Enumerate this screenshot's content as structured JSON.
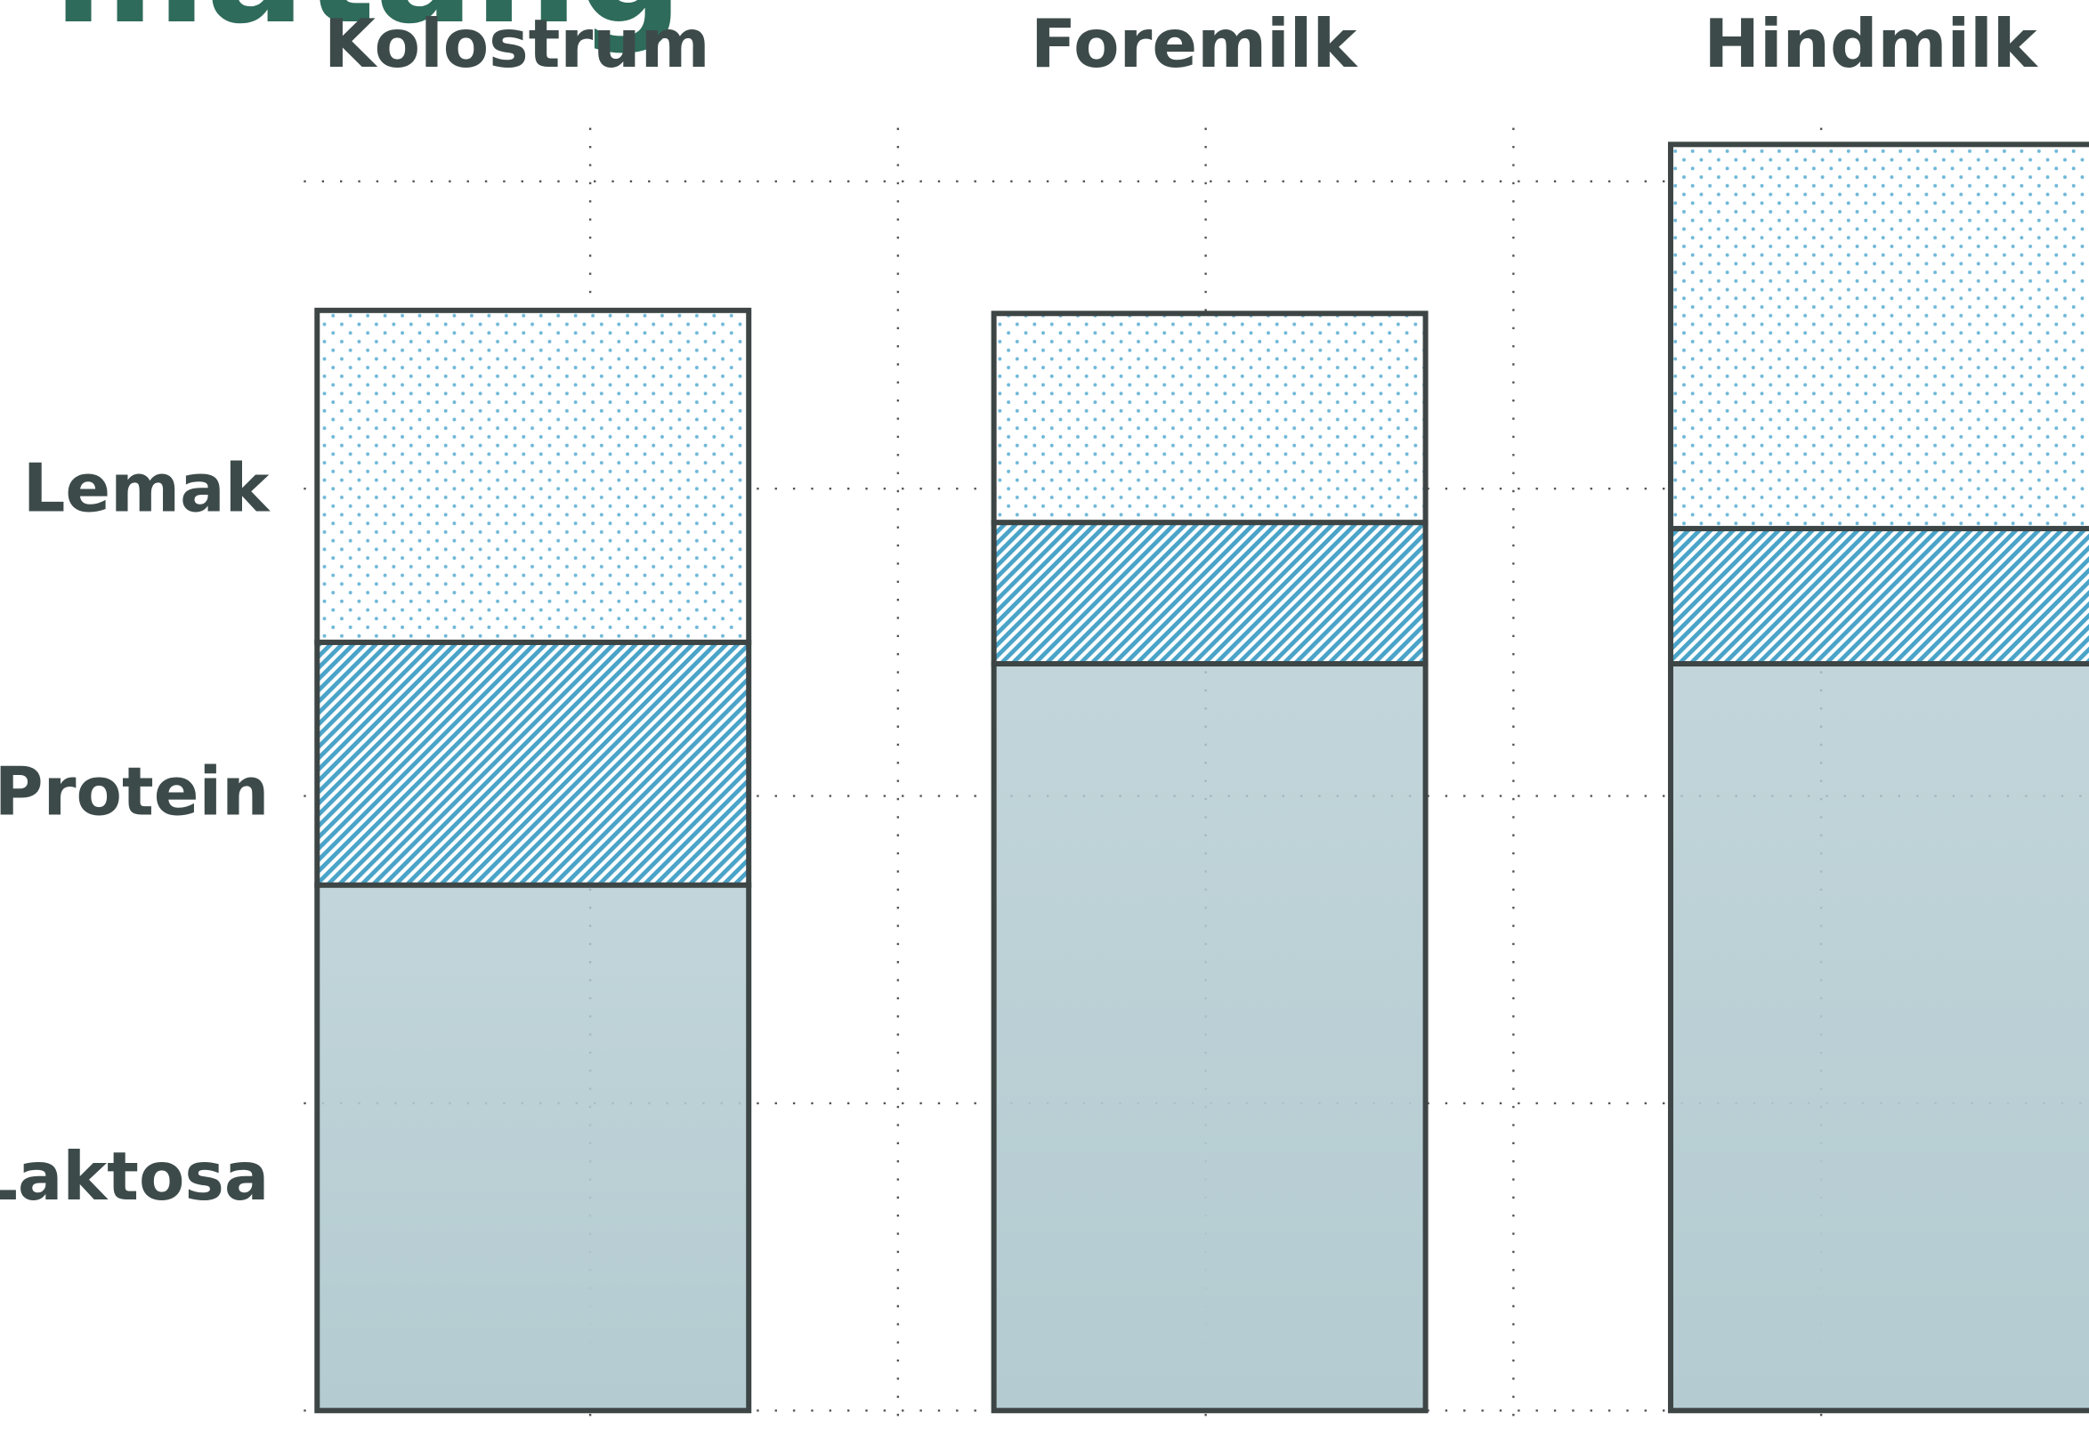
{
  "chart_data": {
    "type": "stacked_bar",
    "title": "matang",
    "categories": [
      "Kolostrum",
      "Foremilk",
      "Hindmilk"
    ],
    "series": [
      {
        "name": "Laktosa",
        "color": "#b3cbd1",
        "pattern": "gradient",
        "values": [
          1.71,
          2.43,
          2.43
        ]
      },
      {
        "name": "Protein",
        "color": "#4aa3c8",
        "pattern": "hatch",
        "values": [
          0.79,
          0.46,
          0.44
        ]
      },
      {
        "name": "Lemak",
        "color": "#6fb8d8",
        "pattern": "dots",
        "values": [
          1.08,
          0.68,
          1.25
        ]
      }
    ],
    "ylim": [
      -0.06,
      4.59
    ],
    "yticks": [
      0,
      1,
      2,
      3,
      4
    ],
    "grid": true
  }
}
